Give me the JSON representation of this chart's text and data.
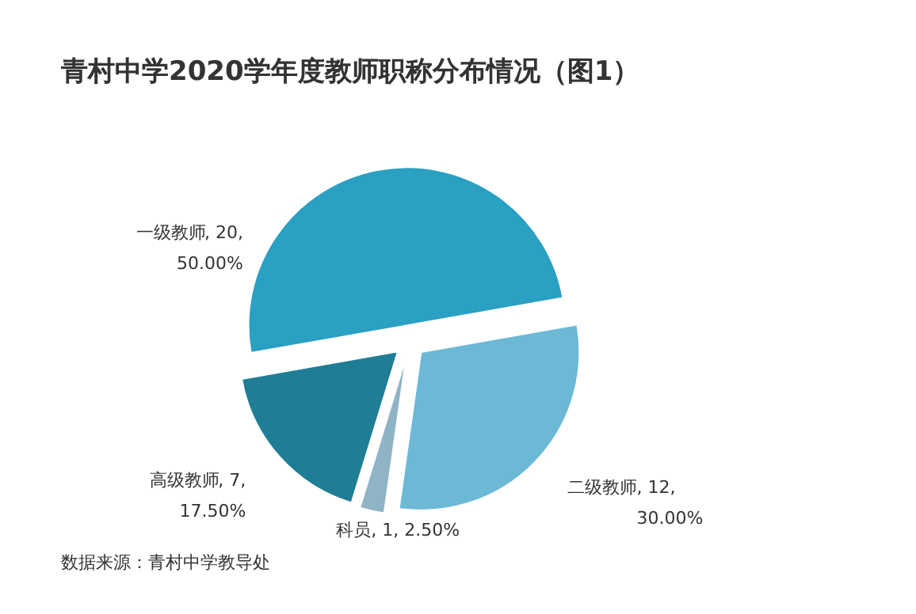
{
  "chart_data": {
    "type": "pie",
    "title": "青村中学2020学年度教师职称分布情况（图1）",
    "categories": [
      "一级教师",
      "二级教师",
      "科员",
      "高级教师"
    ],
    "values": [
      20,
      12,
      1,
      7
    ],
    "colors": [
      "#2aa0c2",
      "#6cb9d6",
      "#8eb4c6",
      "#1f7d96"
    ],
    "value_labels": [
      ", 20,\n50.00%",
      ", 12,\n30.00%",
      ", 1, 2.50%",
      ", 7,\n17.50%"
    ],
    "annotations": [
      "数据来源：青村中学教导处"
    ]
  }
}
